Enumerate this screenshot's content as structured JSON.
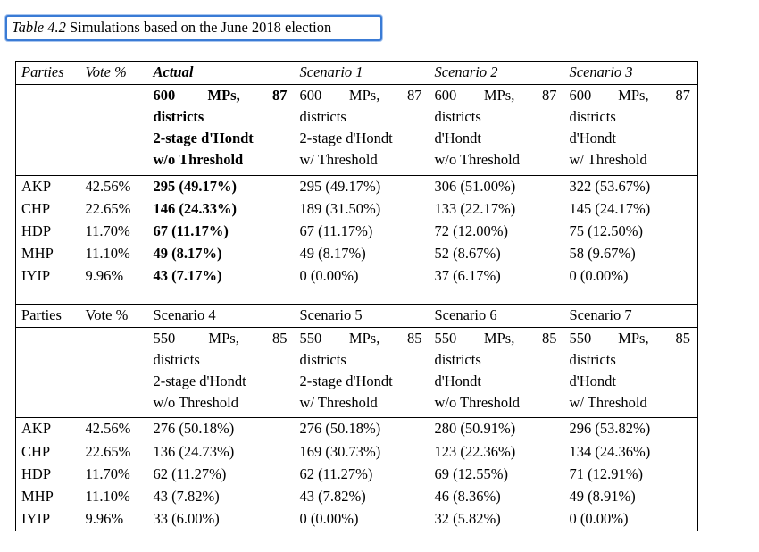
{
  "caption": {
    "number": "Table 4.2",
    "text": " Simulations based on the June 2018 election"
  },
  "blocks": [
    {
      "header": {
        "parties": "Parties",
        "vote": "Vote %",
        "cols": [
          "Actual",
          "Scenario 1",
          "Scenario 2",
          "Scenario 3"
        ]
      },
      "config": [
        {
          "mps": "600",
          "mps_label": "MPs,",
          "districts_n": "87",
          "districts": "districts",
          "method": "2-stage d'Hondt",
          "threshold": "w/o Threshold"
        },
        {
          "mps": "600",
          "mps_label": "MPs,",
          "districts_n": "87",
          "districts": "districts",
          "method": "2-stage d'Hondt",
          "threshold": "w/ Threshold"
        },
        {
          "mps": "600",
          "mps_label": "MPs,",
          "districts_n": "87",
          "districts": "districts",
          "method": "d'Hondt",
          "threshold": "w/o Threshold"
        },
        {
          "mps": "600",
          "mps_label": "MPs,",
          "districts_n": "87",
          "districts": "districts",
          "method": "d'Hondt",
          "threshold": "w/ Threshold"
        }
      ],
      "rows": [
        {
          "party": "AKP",
          "vote": "42.56%",
          "vals": [
            "295 (49.17%)",
            "295 (49.17%)",
            "306 (51.00%)",
            "322 (53.67%)"
          ]
        },
        {
          "party": "CHP",
          "vote": "22.65%",
          "vals": [
            "146 (24.33%)",
            "189 (31.50%)",
            "133 (22.17%)",
            "145 (24.17%)"
          ]
        },
        {
          "party": "HDP",
          "vote": "11.70%",
          "vals": [
            "67 (11.17%)",
            "67 (11.17%)",
            "72 (12.00%)",
            "75 (12.50%)"
          ]
        },
        {
          "party": "MHP",
          "vote": "11.10%",
          "vals": [
            "49 (8.17%)",
            "49 (8.17%)",
            "52 (8.67%)",
            "58 (9.67%)"
          ]
        },
        {
          "party": "IYIP",
          "vote": "9.96%",
          "vals": [
            "43 (7.17%)",
            "0 (0.00%)",
            "37 (6.17%)",
            "0 (0.00%)"
          ]
        }
      ]
    },
    {
      "header": {
        "parties": "Parties",
        "vote": "Vote %",
        "cols": [
          "Scenario 4",
          "Scenario 5",
          "Scenario 6",
          "Scenario 7"
        ]
      },
      "config": [
        {
          "mps": "550",
          "mps_label": "MPs,",
          "districts_n": "85",
          "districts": "districts",
          "method": "2-stage d'Hondt",
          "threshold": "w/o Threshold"
        },
        {
          "mps": "550",
          "mps_label": "MPs,",
          "districts_n": "85",
          "districts": "districts",
          "method": "2-stage d'Hondt",
          "threshold": "w/ Threshold"
        },
        {
          "mps": "550",
          "mps_label": "MPs,",
          "districts_n": "85",
          "districts": "districts",
          "method": "d'Hondt",
          "threshold": "w/o Threshold"
        },
        {
          "mps": "550",
          "mps_label": "MPs,",
          "districts_n": "85",
          "districts": "districts",
          "method": "d'Hondt",
          "threshold": "w/ Threshold"
        }
      ],
      "rows": [
        {
          "party": "AKP",
          "vote": "42.56%",
          "vals": [
            "276 (50.18%)",
            "276 (50.18%)",
            "280 (50.91%)",
            "296 (53.82%)"
          ]
        },
        {
          "party": "CHP",
          "vote": "22.65%",
          "vals": [
            "136 (24.73%)",
            "169 (30.73%)",
            "123 (22.36%)",
            "134 (24.36%)"
          ]
        },
        {
          "party": "HDP",
          "vote": "11.70%",
          "vals": [
            "62 (11.27%)",
            "62 (11.27%)",
            "69 (12.55%)",
            "71 (12.91%)"
          ]
        },
        {
          "party": "MHP",
          "vote": "11.10%",
          "vals": [
            "43 (7.82%)",
            "43 (7.82%)",
            "46 (8.36%)",
            "49 (8.91%)"
          ]
        },
        {
          "party": "IYIP",
          "vote": "9.96%",
          "vals": [
            "33 (6.00%)",
            "0 (0.00%)",
            "32 (5.82%)",
            "0 (0.00%)"
          ]
        }
      ]
    }
  ]
}
